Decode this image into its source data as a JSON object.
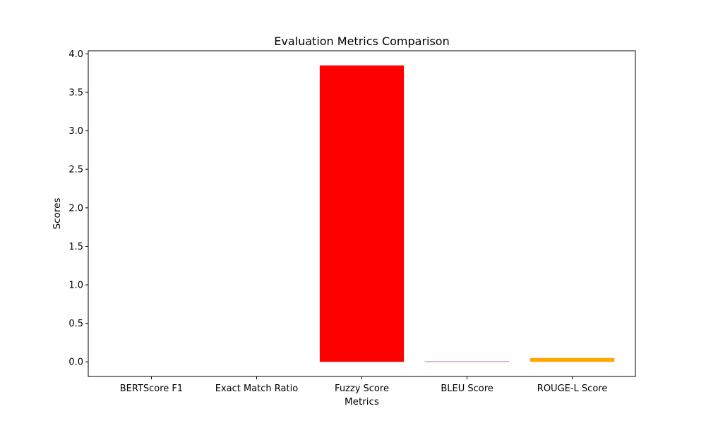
{
  "chart_data": {
    "type": "bar",
    "title": "Evaluation Metrics Comparison",
    "xlabel": "Metrics",
    "ylabel": "Scores",
    "categories": [
      "BERTScore F1",
      "Exact Match Ratio",
      "Fuzzy Score",
      "BLEU Score",
      "ROUGE-L Score"
    ],
    "values": [
      0.0,
      0.0,
      3.85,
      0.005,
      0.05
    ],
    "colors": [
      "#1f77b4",
      "#2ca02c",
      "#ff0000",
      "#800080",
      "#ffa500"
    ],
    "ylim": [
      -0.19,
      4.04
    ],
    "yticks": [
      0.0,
      0.5,
      1.0,
      1.5,
      2.0,
      2.5,
      3.0,
      3.5,
      4.0
    ],
    "ytick_labels": [
      "0.0",
      "0.5",
      "1.0",
      "1.5",
      "2.0",
      "2.5",
      "3.0",
      "3.5",
      "4.0"
    ],
    "grid": false,
    "legend": "none"
  }
}
